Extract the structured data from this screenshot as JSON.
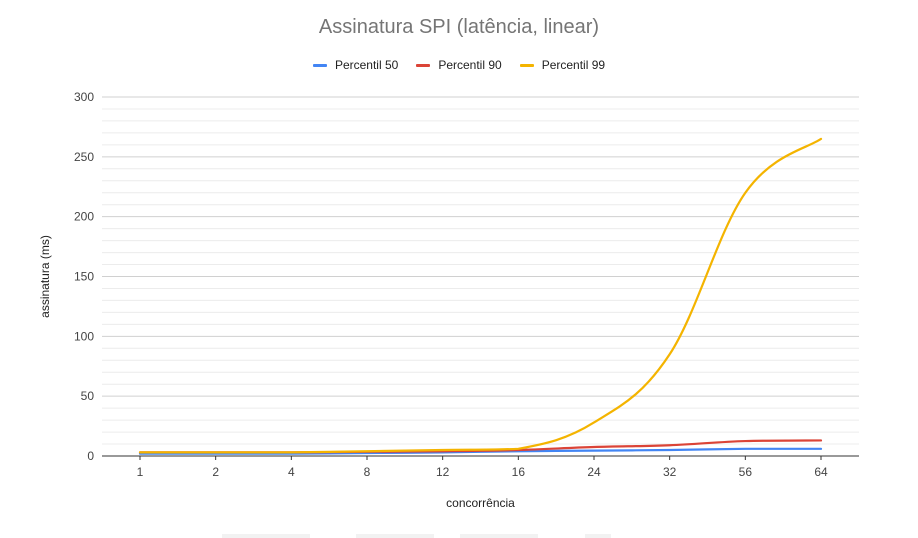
{
  "chart_data": {
    "type": "line",
    "title": "Assinatura SPI (latência, linear)",
    "xlabel": "concorrência",
    "ylabel": "assinatura (ms)",
    "categories": [
      "1",
      "2",
      "4",
      "8",
      "12",
      "16",
      "24",
      "32",
      "56",
      "64"
    ],
    "ylim": [
      0,
      300
    ],
    "yticks": [
      0,
      50,
      100,
      150,
      200,
      250,
      300
    ],
    "grid": true,
    "legend_position": "top",
    "series": [
      {
        "name": "Percentil 50",
        "color": "#4285F4",
        "values": [
          2,
          2,
          2,
          2.5,
          3,
          4,
          4.5,
          5,
          6,
          6
        ]
      },
      {
        "name": "Percentil 90",
        "color": "#DB4437",
        "values": [
          3,
          3,
          3,
          3.5,
          4,
          5,
          7.5,
          9,
          12.5,
          13
        ]
      },
      {
        "name": "Percentil 99",
        "color": "#F4B400",
        "values": [
          3,
          3,
          3,
          4,
          5,
          6,
          28,
          85,
          220,
          265
        ]
      }
    ]
  }
}
